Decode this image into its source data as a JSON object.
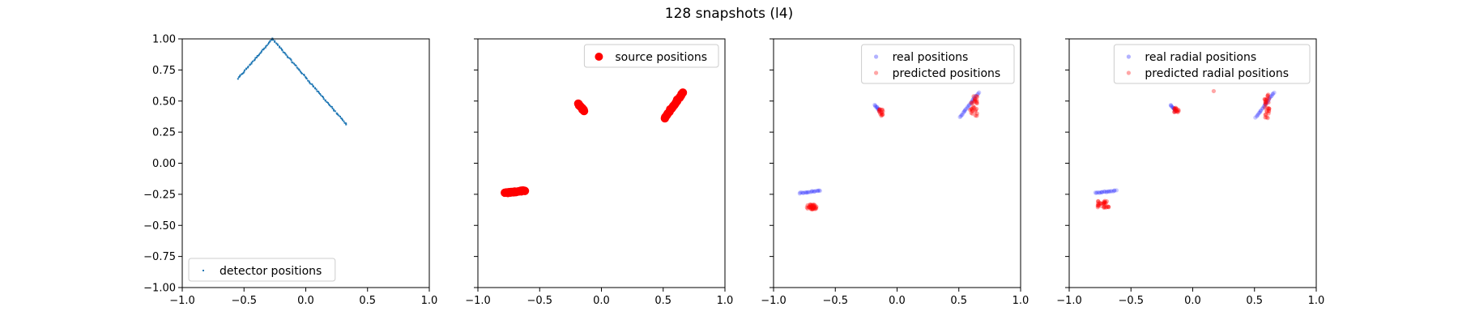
{
  "figure": {
    "title": "128 snapshots (l4)"
  },
  "chart_data": [
    {
      "type": "scatter",
      "xlim": [
        -1.0,
        1.0
      ],
      "ylim": [
        -1.0,
        1.0
      ],
      "xticks": [
        "−1.0",
        "−0.5",
        "0.0",
        "0.5",
        "1.0"
      ],
      "yticks": [
        "1.00",
        "0.75",
        "0.50",
        "0.25",
        "0.00",
        "−0.25",
        "−0.50",
        "−0.75",
        "−1.00"
      ],
      "show_ytick_labels": true,
      "legend_position": "lower-left",
      "series": [
        {
          "name": "detector positions",
          "color": "#1f77b4",
          "marker": "tiny",
          "alpha": 1.0,
          "segments": [
            {
              "from": [
                -0.55,
                0.68
              ],
              "to": [
                -0.27,
                1.0
              ],
              "n": 40
            },
            {
              "from": [
                -0.27,
                1.0
              ],
              "to": [
                0.33,
                0.31
              ],
              "n": 80
            }
          ]
        }
      ]
    },
    {
      "type": "scatter",
      "xlim": [
        -1.0,
        1.0
      ],
      "ylim": [
        -1.0,
        1.0
      ],
      "xticks": [
        "−1.0",
        "−0.5",
        "0.0",
        "0.5",
        "1.0"
      ],
      "yticks": [],
      "show_ytick_labels": false,
      "legend_position": "upper-right",
      "series": [
        {
          "name": "source positions",
          "color": "#ff0000",
          "marker": "large",
          "alpha": 1.0,
          "segments": [
            {
              "from": [
                -0.78,
                -0.24
              ],
              "to": [
                -0.62,
                -0.22
              ],
              "n": 20
            },
            {
              "from": [
                -0.19,
                0.48
              ],
              "to": [
                -0.14,
                0.42
              ],
              "n": 10
            },
            {
              "from": [
                0.51,
                0.36
              ],
              "to": [
                0.66,
                0.57
              ],
              "n": 25
            }
          ]
        }
      ]
    },
    {
      "type": "scatter",
      "xlim": [
        -1.0,
        1.0
      ],
      "ylim": [
        -1.0,
        1.0
      ],
      "xticks": [
        "−1.0",
        "−0.5",
        "0.0",
        "0.5",
        "1.0"
      ],
      "yticks": [],
      "show_ytick_labels": false,
      "legend_position": "upper-right",
      "series": [
        {
          "name": "real positions",
          "color": "#0000ff",
          "marker": "small",
          "alpha": 0.2,
          "segments": [
            {
              "from": [
                -0.79,
                -0.24
              ],
              "to": [
                -0.62,
                -0.22
              ],
              "n": 20
            },
            {
              "from": [
                -0.18,
                0.47
              ],
              "to": [
                -0.14,
                0.42
              ],
              "n": 10
            },
            {
              "from": [
                0.51,
                0.37
              ],
              "to": [
                0.66,
                0.57
              ],
              "n": 25
            }
          ]
        },
        {
          "name": "predicted positions",
          "color": "#ff0000",
          "marker": "small",
          "alpha": 0.35,
          "clusters": [
            {
              "center": [
                -0.69,
                -0.35
              ],
              "spread": [
                0.04,
                0.02
              ],
              "n": 30
            },
            {
              "center": [
                -0.13,
                0.41
              ],
              "spread": [
                0.02,
                0.03
              ],
              "n": 15
            },
            {
              "center": [
                0.62,
                0.46
              ],
              "spread": [
                0.03,
                0.08
              ],
              "n": 30
            }
          ]
        }
      ]
    },
    {
      "type": "scatter",
      "xlim": [
        -1.0,
        1.0
      ],
      "ylim": [
        -1.0,
        1.0
      ],
      "xticks": [
        "−1.0",
        "−0.5",
        "0.0",
        "0.5",
        "1.0"
      ],
      "yticks": [],
      "show_ytick_labels": false,
      "legend_position": "upper-right",
      "series": [
        {
          "name": "real radial positions",
          "color": "#0000ff",
          "marker": "small",
          "alpha": 0.2,
          "segments": [
            {
              "from": [
                -0.79,
                -0.24
              ],
              "to": [
                -0.62,
                -0.22
              ],
              "n": 20
            },
            {
              "from": [
                -0.18,
                0.47
              ],
              "to": [
                -0.14,
                0.42
              ],
              "n": 10
            },
            {
              "from": [
                0.51,
                0.37
              ],
              "to": [
                0.66,
                0.57
              ],
              "n": 25
            }
          ]
        },
        {
          "name": "predicted radial positions",
          "color": "#ff0000",
          "marker": "small",
          "alpha": 0.35,
          "clusters": [
            {
              "center": [
                -0.72,
                -0.33
              ],
              "spread": [
                0.05,
                0.03
              ],
              "n": 30
            },
            {
              "center": [
                -0.13,
                0.43
              ],
              "spread": [
                0.02,
                0.02
              ],
              "n": 15
            },
            {
              "center": [
                0.6,
                0.46
              ],
              "spread": [
                0.02,
                0.1
              ],
              "n": 30
            }
          ],
          "points": [
            [
              0.17,
              0.58
            ]
          ]
        }
      ]
    }
  ]
}
